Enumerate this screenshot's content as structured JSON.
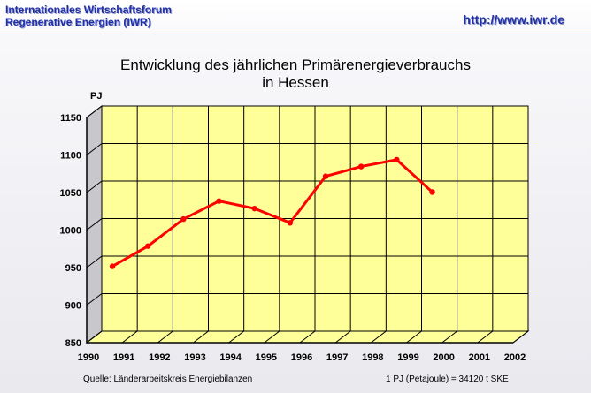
{
  "header": {
    "org_line1": "Internationales Wirtschaftsforum",
    "org_line2": "Regenerative Energien (IWR)",
    "url": "http://www.iwr.de"
  },
  "footer": {
    "source": "Quelle: Länderarbeitskreis Energiebilanzen",
    "note": "1 PJ (Petajoule) = 34120 t SKE"
  },
  "colors": {
    "plot_wall": "#ffff99",
    "plot_floor": "#ffff99",
    "grid": "#000000",
    "series": "#ff0000",
    "header_text": "#1f2fa8",
    "header_rule": "#b03030"
  },
  "chart_data": {
    "type": "line",
    "title_line1": "Entwicklung des jährlichen Primärenergieverbrauchs",
    "title_line2": "in Hessen",
    "ylabel": "PJ",
    "xlabel": "",
    "ylim": [
      850,
      1150
    ],
    "yticks": [
      850,
      900,
      950,
      1000,
      1050,
      1100,
      1150
    ],
    "xlim": [
      1990,
      2002
    ],
    "xticks": [
      1990,
      1991,
      1992,
      1993,
      1994,
      1995,
      1996,
      1997,
      1998,
      1999,
      2000,
      2001,
      2002
    ],
    "grid": true,
    "style": "3d",
    "series": [
      {
        "name": "",
        "x": [
          1990,
          1991,
          1992,
          1993,
          1994,
          1995,
          1996,
          1997,
          1998,
          1999
        ],
        "values": [
          944,
          971,
          1007,
          1031,
          1021,
          1002,
          1064,
          1077,
          1086,
          1043
        ]
      }
    ]
  }
}
